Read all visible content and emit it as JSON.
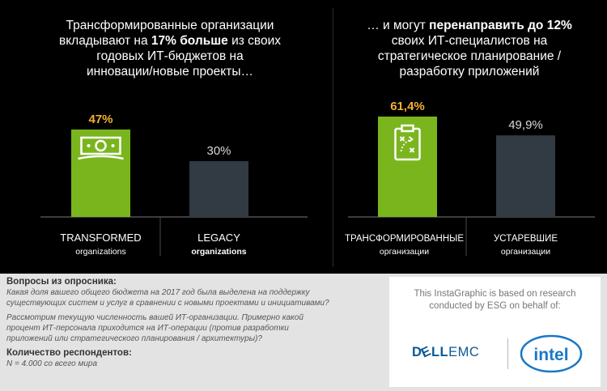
{
  "colors": {
    "transformed": "#7ab51e",
    "legacy": "#323a44",
    "highlight": "#f5b131",
    "text_light": "#ffffff",
    "text_dark": "#d8d8d8"
  },
  "left_headline": {
    "line1": "Трансформированные организации",
    "line2_pre": "вкладывают на ",
    "line2_bold": "17% больше",
    "line2_post": " из своих",
    "line3": "годовых ИТ-бюджетов на",
    "line4": "инновации/новые проекты…"
  },
  "right_headline": {
    "line1_pre": "… и могут ",
    "line1_bold": "перенаправить до 12%",
    "line2": "своих  ИТ-специалистов на",
    "line3": "стратегическое планирование /",
    "line4": "разработку приложений"
  },
  "chart_data": [
    {
      "type": "bar",
      "categories": [
        "TRANSFORMED organizations",
        "LEGACY organizations"
      ],
      "values": [
        47,
        30
      ],
      "value_labels": [
        "47%",
        "30%"
      ],
      "cat_line1": [
        "TRANSFORMED",
        "LEGACY"
      ],
      "cat_line2": [
        "organizations",
        "organizations"
      ],
      "ylim": [
        0,
        47
      ],
      "icon": "money-icon"
    },
    {
      "type": "bar",
      "categories": [
        "ТРАНСФОРМИРОВАННЫЕ организации",
        "УСТАРЕВШИЕ организации"
      ],
      "values": [
        61.4,
        49.9
      ],
      "value_labels": [
        "61,4%",
        "49,9%"
      ],
      "cat_line1": [
        "ТРАНСФОРМИРОВАННЫЕ",
        "УСТАРЕВШИЕ"
      ],
      "cat_line2": [
        "организации",
        "организации"
      ],
      "ylim": [
        0,
        61.4
      ],
      "icon": "clipboard-strategy-icon"
    }
  ],
  "questions": {
    "title": "Вопросы из опросника:",
    "q1_line1": "Какая доля вашего общего бюджета на 2017 год была выделена на поддержку",
    "q1_line2": "существующих систем и услуг в сравнении с новыми проектами и инициативами?",
    "q2_line1": "Рассмотрим текущую численность вашей ИТ-организации. Примерно какой",
    "q2_line2": "процент ИТ-персонала приходится на ИТ-операции (против разработки",
    "q2_line3": "приложений или стратегического планирования / архитектуры)?",
    "respondents_title": "Количество респондентов:",
    "respondents_value": "N = 4.000 со всего мира"
  },
  "sponsor": {
    "line1": "This InstaGraphic is based on research",
    "line2": "conducted by ESG on behalf of:",
    "dell_text": "D",
    "dell_e": "E",
    "dell_ll": "LL",
    "emc_text": "EMC",
    "intel_text": "intel"
  }
}
